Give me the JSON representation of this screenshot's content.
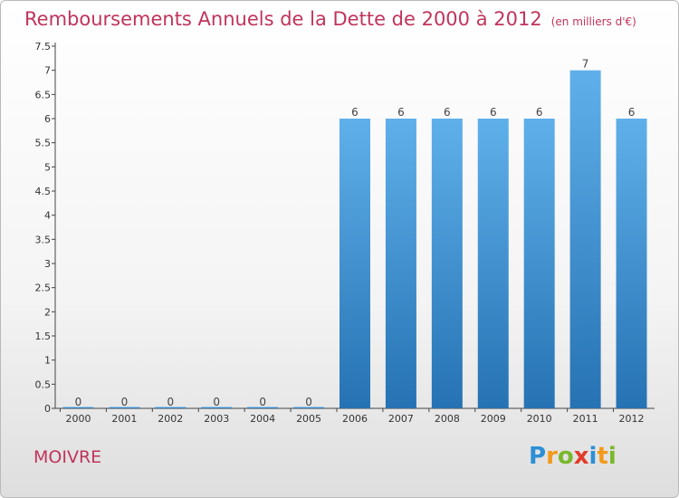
{
  "title": "Remboursements Annuels de la Dette de 2000 à 2012",
  "unit_label": "(en milliers d'€)",
  "commune": "MOIVRE",
  "logo": {
    "text": "Proxiti",
    "letters": [
      {
        "ch": "P",
        "color": "#2d8fd6"
      },
      {
        "ch": "r",
        "color": "#f29a1a"
      },
      {
        "ch": "o",
        "color": "#79b82b"
      },
      {
        "ch": "x",
        "color": "#e23b2b"
      },
      {
        "ch": "i",
        "color": "#2d8fd6"
      },
      {
        "ch": "t",
        "color": "#f29a1a"
      },
      {
        "ch": "i",
        "color": "#79b82b"
      }
    ]
  },
  "colors": {
    "accent": "#c0345b",
    "bar_top": "#5fb0ea",
    "bar_bottom": "#2672b3"
  },
  "chart_data": {
    "type": "bar",
    "categories": [
      "2000",
      "2001",
      "2002",
      "2003",
      "2004",
      "2005",
      "2006",
      "2007",
      "2008",
      "2009",
      "2010",
      "2011",
      "2012"
    ],
    "values": [
      0,
      0,
      0,
      0,
      0,
      0,
      6,
      6,
      6,
      6,
      6,
      7,
      6
    ],
    "value_labels": [
      "0",
      "0",
      "0",
      "0",
      "0",
      "0",
      "6",
      "6",
      "6",
      "6",
      "6",
      "7",
      "6"
    ],
    "yticks": [
      "0",
      "0.5",
      "1",
      "1.5",
      "2",
      "2.5",
      "3",
      "3.5",
      "4",
      "4.5",
      "5",
      "5.5",
      "6",
      "6.5",
      "7",
      "7.5"
    ],
    "ylim": [
      0,
      7.5
    ],
    "grid": false
  }
}
